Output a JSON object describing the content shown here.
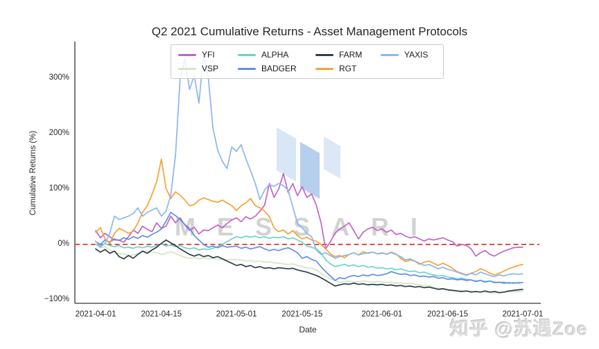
{
  "chart": {
    "title": "Q2 2021 Cumulative Returns - Asset Management Protocols",
    "xlabel": "Date",
    "ylabel": "Cumulative Returns (%)",
    "axis_color": "#333333",
    "text_color": "#262626"
  },
  "watermarks": {
    "messari_text": "MESSARI",
    "messari_logo": "messari-chevron-logo",
    "zhihu": "知乎 @苏遇Zoe"
  },
  "chart_data": {
    "type": "line",
    "x_unit": "days since 2021-04-01 (daily data)",
    "x_start": "2021-04-01",
    "x_end": "2021-07-01",
    "x_tick_labels": [
      "2021-04-01",
      "2021-04-15",
      "2021-05-01",
      "2021-05-15",
      "2021-06-01",
      "2021-06-15",
      "2021-07-01"
    ],
    "x_tick_days": [
      0,
      14,
      30,
      44,
      61,
      75,
      91
    ],
    "y_ticks": [
      {
        "label": "300%",
        "value": 300
      },
      {
        "label": "200%",
        "value": 200
      },
      {
        "label": "100%",
        "value": 100
      },
      {
        "label": "0%",
        "value": 0
      },
      {
        "label": "−100%",
        "value": -100
      }
    ],
    "ylim": [
      -109,
      366
    ],
    "grid": false,
    "legend_position": "top-center, 4 columns",
    "zero_line": {
      "y": 0,
      "style": "dashed",
      "color": "#d53a2d"
    },
    "series": [
      {
        "name": "YFI",
        "color": "#c264c9",
        "values": [
          25,
          12,
          20,
          14,
          8,
          8,
          4,
          14,
          26,
          20,
          33,
          27,
          23,
          39,
          29,
          33,
          51,
          39,
          48,
          35,
          25,
          31,
          19,
          26,
          25,
          30,
          35,
          30,
          38,
          44,
          48,
          41,
          50,
          46,
          51,
          60,
          71,
          110,
          85,
          100,
          128,
          94,
          110,
          88,
          104,
          85,
          91,
          71,
          40,
          -8,
          5,
          20,
          28,
          33,
          39,
          25,
          10,
          22,
          28,
          31,
          25,
          28,
          22,
          26,
          18,
          20,
          15,
          12,
          14,
          10,
          6,
          10,
          8,
          10,
          12,
          8,
          5,
          -3,
          0,
          -2,
          -8,
          -21,
          -15,
          -11,
          -18,
          -21,
          -16,
          -12,
          -9,
          -6,
          -5,
          -5
        ]
      },
      {
        "name": "VSP",
        "color": "#d6e6c3",
        "values": [
          0,
          -6,
          -4,
          -10,
          -13,
          -17,
          -17,
          -20,
          -19,
          -16,
          -13,
          -12,
          -14,
          -15,
          -18,
          -16,
          -13,
          -16,
          -20,
          -23,
          -25,
          -24,
          -26,
          -24,
          -26,
          -25,
          -27,
          -26,
          -28,
          -27,
          -28,
          -28,
          -30,
          -29,
          -31,
          -30,
          -32,
          -31,
          -33,
          -34,
          -35,
          -36,
          -35,
          -38,
          -40,
          -42,
          -43,
          -46,
          -52,
          -58,
          -62,
          -65,
          -69,
          -67,
          -66,
          -68,
          -67,
          -66,
          -67,
          -68,
          -67,
          -68,
          -69,
          -68,
          -70,
          -69,
          -71,
          -70,
          -72,
          -73,
          -74,
          -75,
          -77,
          -79,
          -80,
          -81,
          -82,
          -83,
          -84,
          -85,
          -84,
          -86,
          -85,
          -86,
          -87,
          -88,
          -87,
          -86,
          -86,
          -85,
          -85,
          -84
        ]
      },
      {
        "name": "ALPHA",
        "color": "#6cd3c6",
        "values": [
          0,
          -3,
          2,
          -2,
          -4,
          -2,
          -6,
          -5,
          -7,
          -4,
          -6,
          -3,
          -5,
          -2,
          1,
          -3,
          -1,
          -4,
          -2,
          -6,
          -8,
          -6,
          -10,
          -8,
          -9,
          -7,
          -4,
          0,
          5,
          10,
          14,
          12,
          15,
          13,
          15,
          12,
          14,
          11,
          13,
          12,
          14,
          10,
          12,
          8,
          4,
          -3,
          -5,
          -8,
          -15,
          -28,
          -35,
          -40,
          -38,
          -36,
          -39,
          -37,
          -40,
          -38,
          -41,
          -40,
          -43,
          -42,
          -44,
          -43,
          -46,
          -44,
          -47,
          -49,
          -48,
          -51,
          -50,
          -53,
          -55,
          -57,
          -56,
          -59,
          -60,
          -62,
          -61,
          -63,
          -64,
          -66,
          -65,
          -67,
          -66,
          -68,
          -69,
          -68,
          -70,
          -69,
          -70,
          -69
        ]
      },
      {
        "name": "BADGER",
        "color": "#5e8fe8",
        "values": [
          5,
          0,
          8,
          4,
          10,
          7,
          12,
          9,
          14,
          11,
          16,
          13,
          18,
          22,
          28,
          42,
          58,
          52,
          45,
          36,
          29,
          16,
          8,
          0,
          -5,
          -3,
          -6,
          -2,
          -5,
          -4,
          -3,
          -7,
          -5,
          -8,
          -6,
          -4,
          -8,
          -11,
          -9,
          -11,
          -8,
          -6,
          -10,
          -15,
          -25,
          -22,
          -27,
          -30,
          -40,
          -49,
          -57,
          -65,
          -60,
          -62,
          -58,
          -56,
          -58,
          -55,
          -57,
          -54,
          -56,
          -55,
          -53,
          -49,
          -52,
          -54,
          -53,
          -56,
          -55,
          -58,
          -57,
          -59,
          -58,
          -61,
          -60,
          -63,
          -62,
          -64,
          -63,
          -65,
          -64,
          -67,
          -65,
          -68,
          -66,
          -69,
          -68,
          -70,
          -69,
          -70,
          -69,
          -69
        ]
      },
      {
        "name": "FARM",
        "color": "#2e3f4a",
        "values": [
          -8,
          -14,
          -9,
          -16,
          -12,
          -22,
          -26,
          -20,
          -25,
          -18,
          -12,
          -16,
          -10,
          -5,
          2,
          8,
          3,
          -2,
          -8,
          -13,
          -18,
          -21,
          -18,
          -22,
          -20,
          -24,
          -22,
          -26,
          -30,
          -34,
          -38,
          -36,
          -40,
          -38,
          -42,
          -40,
          -43,
          -42,
          -44,
          -42,
          -43,
          -44,
          -43,
          -46,
          -48,
          -50,
          -53,
          -56,
          -60,
          -65,
          -70,
          -75,
          -73,
          -71,
          -72,
          -70,
          -72,
          -71,
          -73,
          -72,
          -73,
          -72,
          -74,
          -73,
          -75,
          -74,
          -76,
          -75,
          -77,
          -76,
          -78,
          -77,
          -79,
          -81,
          -80,
          -82,
          -83,
          -84,
          -85,
          -84,
          -86,
          -85,
          -86,
          -84,
          -86,
          -85,
          -87,
          -86,
          -84,
          -83,
          -82,
          -81
        ]
      },
      {
        "name": "RGT",
        "color": "#f5a234",
        "values": [
          22,
          30,
          10,
          2,
          20,
          29,
          25,
          20,
          24,
          39,
          58,
          70,
          90,
          113,
          154,
          101,
          83,
          95,
          89,
          80,
          70,
          72,
          80,
          84,
          81,
          78,
          76,
          80,
          75,
          70,
          61,
          70,
          75,
          83,
          70,
          66,
          60,
          50,
          30,
          23,
          26,
          19,
          25,
          16,
          10,
          13,
          8,
          6,
          0,
          -8,
          -17,
          -22,
          -20,
          -24,
          -18,
          -15,
          -19,
          -13,
          -16,
          -14,
          -17,
          -15,
          -18,
          -14,
          -17,
          -25,
          -31,
          -28,
          -30,
          -36,
          -32,
          -30,
          -34,
          -38,
          -34,
          -38,
          -43,
          -49,
          -52,
          -55,
          -52,
          -49,
          -44,
          -47,
          -52,
          -55,
          -52,
          -48,
          -44,
          -41,
          -38,
          -36
        ]
      },
      {
        "name": "YAXIS",
        "color": "#8ab6f0",
        "values": [
          6,
          -5,
          2,
          20,
          51,
          45,
          48,
          51,
          56,
          66,
          51,
          58,
          62,
          66,
          51,
          60,
          89,
          160,
          300,
          335,
          280,
          305,
          255,
          345,
          300,
          210,
          170,
          150,
          137,
          176,
          168,
          180,
          155,
          133,
          110,
          81,
          98,
          108,
          105,
          110,
          106,
          98,
          68,
          38,
          30,
          20,
          14,
          -10,
          -18,
          -15,
          -20,
          -25,
          -22,
          -20,
          -18,
          -15,
          -19,
          -17,
          -15,
          -14,
          -17,
          -16,
          -17,
          -15,
          -18,
          -22,
          -28,
          -26,
          -30,
          -34,
          -38,
          -36,
          -40,
          -44,
          -41,
          -45,
          -47,
          -50,
          -53,
          -56,
          -52,
          -55,
          -50,
          -53,
          -56,
          -58,
          -55,
          -57,
          -54,
          -53,
          -54,
          -53
        ]
      }
    ]
  }
}
